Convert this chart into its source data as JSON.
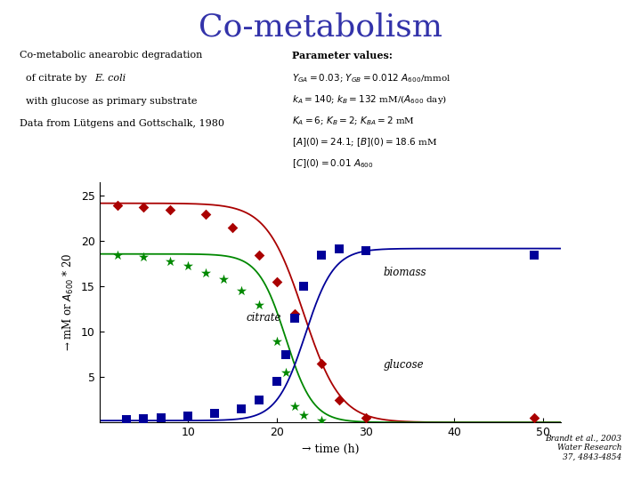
{
  "title": "Co-metabolism",
  "title_color": "#3333aa",
  "title_fontsize": 26,
  "desc_lines": [
    [
      "Co-metabolic anearobic degradation",
      false
    ],
    [
      "  of citrate by ",
      false,
      "E. coli",
      true,
      "",
      false
    ],
    [
      "  with glucose as primary substrate",
      false
    ],
    [
      "Data from Lütgens and Gottschalk, 1980",
      false
    ]
  ],
  "param_title": "Parameter values:",
  "param_lines": [
    "$Y_{GA} = 0.03$; $Y_{GB} = 0.012$ $A_{600}$/mmol",
    "$k_A = 140$; $k_B = 132$ mM/($A_{600}$ day)",
    "$K_A = 6$; $K_B = 2$; $K_{BA} = 2$ mM",
    "$[A](0) = 24.1$; $[B](0) = 18.6$ mM",
    "$[C](0) = 0.01$ $A_{600}$"
  ],
  "xlabel": "→ time (h)",
  "ylabel": "→ mM or $A_{600}$ * 20",
  "xlim": [
    0,
    52
  ],
  "ylim": [
    0,
    26.5
  ],
  "xticks": [
    10,
    20,
    30,
    40,
    50
  ],
  "yticks": [
    5,
    10,
    15,
    20,
    25
  ],
  "glucose_data_x": [
    2,
    5,
    8,
    12,
    15,
    18,
    20,
    22,
    25,
    27,
    30,
    49
  ],
  "glucose_data_y": [
    24.0,
    23.8,
    23.5,
    23.0,
    21.5,
    18.5,
    15.5,
    12.0,
    6.5,
    2.5,
    0.5,
    0.5
  ],
  "citrate_data_x": [
    2,
    5,
    8,
    10,
    12,
    14,
    16,
    18,
    20,
    21,
    22,
    23,
    25
  ],
  "citrate_data_y": [
    18.5,
    18.3,
    17.8,
    17.3,
    16.5,
    15.8,
    14.5,
    13.0,
    9.0,
    5.5,
    1.8,
    0.8,
    0.2
  ],
  "biomass_data_x": [
    3,
    5,
    7,
    10,
    13,
    16,
    18,
    20,
    21,
    22,
    23,
    25,
    27,
    30,
    49
  ],
  "biomass_data_y": [
    0.3,
    0.4,
    0.5,
    0.7,
    1.0,
    1.5,
    2.5,
    4.5,
    7.5,
    11.5,
    15.0,
    18.5,
    19.2,
    19.0,
    18.5
  ],
  "glucose_color": "#aa0000",
  "citrate_color": "#008800",
  "biomass_color": "#000099",
  "citation_line1": "Brandt ",
  "citation_line2": "et al., 2003",
  "citation_line3": "Water Research",
  "citation_line4": "37, 4843-4854",
  "background_color": "#ffffff"
}
